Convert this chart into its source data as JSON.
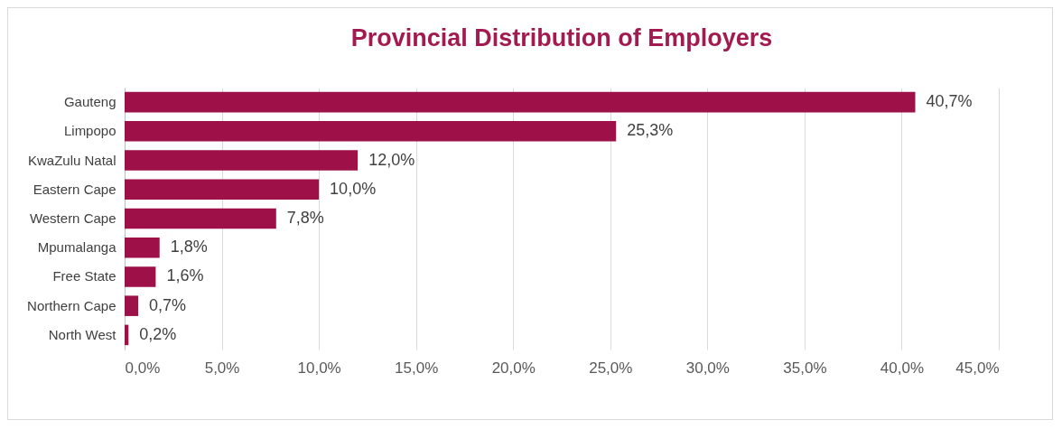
{
  "chart_data": {
    "type": "bar",
    "orientation": "horizontal",
    "title": "Provincial Distribution of Employers",
    "categories": [
      "Gauteng",
      "Limpopo",
      "KwaZulu Natal",
      "Eastern Cape",
      "Western Cape",
      "Mpumalanga",
      "Free State",
      "Northern Cape",
      "North West"
    ],
    "values": [
      40.7,
      25.3,
      12.0,
      10.0,
      7.8,
      1.8,
      1.6,
      0.7,
      0.2
    ],
    "value_labels": [
      "40,7%",
      "25,3%",
      "12,0%",
      "10,0%",
      "7,8%",
      "1,8%",
      "1,6%",
      "0,7%",
      "0,2%"
    ],
    "color": "#9e1048",
    "xlim": [
      0,
      45
    ],
    "xticks": [
      {
        "value": 0,
        "label": "0,0%"
      },
      {
        "value": 5,
        "label": "5,0%"
      },
      {
        "value": 10,
        "label": "10,0%"
      },
      {
        "value": 15,
        "label": "15,0%"
      },
      {
        "value": 20,
        "label": "20,0%"
      },
      {
        "value": 25,
        "label": "25,0%"
      },
      {
        "value": 30,
        "label": "30,0%"
      },
      {
        "value": 35,
        "label": "35,0%"
      },
      {
        "value": 40,
        "label": "40,0%"
      },
      {
        "value": 45,
        "label": "45,0%"
      }
    ],
    "grid": "x"
  }
}
